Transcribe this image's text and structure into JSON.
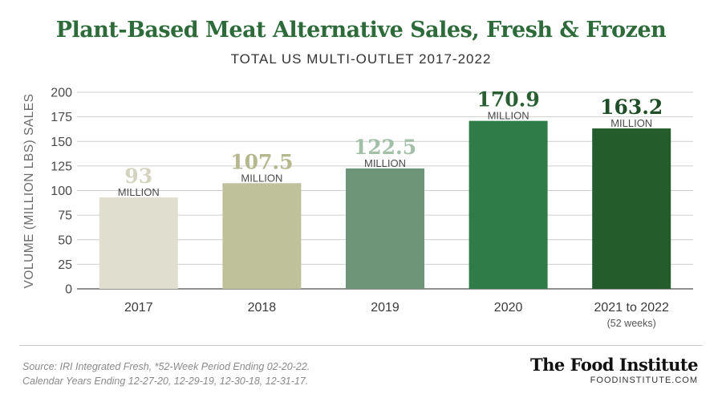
{
  "header": {
    "title": "Plant-Based Meat Alternative Sales, Fresh & Frozen",
    "subtitle": "TOTAL US MULTI-OUTLET 2017-2022"
  },
  "chart_data": {
    "type": "bar",
    "categories": [
      "2017",
      "2018",
      "2019",
      "2020",
      "2021 to 2022"
    ],
    "category_notes": [
      "",
      "",
      "",
      "",
      "(52 weeks)"
    ],
    "values": [
      93,
      107.5,
      122.5,
      170.9,
      163.2
    ],
    "value_labels": [
      "93",
      "107.5",
      "122.5",
      "170.9",
      "163.2"
    ],
    "unit_label": "MILLION",
    "ylabel": "VOLUME (MILLION LBS) SALES",
    "ylim": [
      0,
      200
    ],
    "yticks": [
      0,
      25,
      50,
      75,
      100,
      125,
      150,
      175,
      200
    ],
    "grid": true,
    "bar_colors": [
      "#e0dfcf",
      "#bfc19b",
      "#6f9579",
      "#2f7c48",
      "#245c2c"
    ],
    "value_label_colors": [
      "#d4d3bf",
      "#b5b78d",
      "#a2c0a8",
      "#2a5f33",
      "#1f4d27"
    ]
  },
  "footer": {
    "source_line1": "Source: IRI Integrated Fresh, *52-Week Period Ending 02-20-22.",
    "source_line2": "Calendar Years Ending 12-27-20, 12-29-19, 12-30-18, 12-31-17.",
    "brand_name": "The Food Institute",
    "brand_url": "FOODINSTITUTE.COM"
  }
}
